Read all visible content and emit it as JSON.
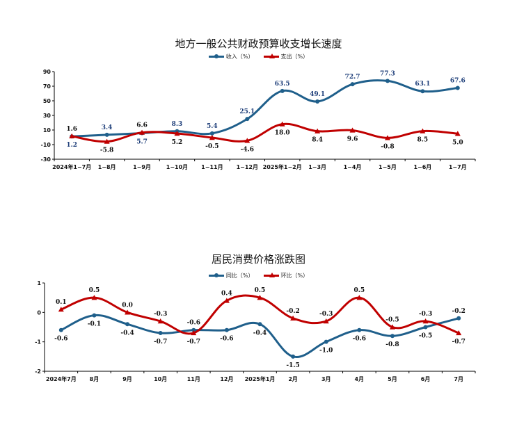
{
  "chart_data": [
    {
      "type": "line",
      "title": "地方一般公共财政预算收支增长速度",
      "categories": [
        "2024年1−7月",
        "1−8月",
        "1−9月",
        "1−10月",
        "1−11月",
        "1−12月",
        "2025年1−2月",
        "1−3月",
        "1−4月",
        "1−5月",
        "1−6月",
        "1−7月"
      ],
      "yticks": [
        90,
        70,
        50,
        30,
        10,
        -10,
        -30
      ],
      "ylim": [
        -30,
        90
      ],
      "series": [
        {
          "name": "收入（%）",
          "color": "#1f5f8b",
          "marker": "circle",
          "values": [
            1.2,
            3.4,
            5.7,
            8.3,
            5.4,
            25.1,
            63.5,
            49.1,
            72.7,
            77.3,
            63.1,
            67.6
          ],
          "labels": [
            "1.2",
            "3.4",
            "5.7",
            "8.3",
            "5.4",
            "25.1",
            "63.5",
            "49.1",
            "72.7",
            "77.3",
            "63.1",
            "67.6"
          ]
        },
        {
          "name": "支出（%）",
          "color": "#c00000",
          "marker": "triangle",
          "values": [
            1.6,
            -5.8,
            6.6,
            5.2,
            -0.5,
            -4.6,
            18.0,
            8.4,
            9.6,
            -0.8,
            8.5,
            5.0
          ],
          "labels": [
            "1.6",
            "-5.8",
            "6.6",
            "5.2",
            "-0.5",
            "-4.6",
            "18.0",
            "8.4",
            "9.6",
            "-0.8",
            "8.5",
            "5.0"
          ]
        }
      ]
    },
    {
      "type": "line",
      "title": "居民消费价格涨跌图",
      "categories": [
        "2024年7月",
        "8月",
        "9月",
        "10月",
        "11月",
        "12月",
        "2025年1月",
        "2月",
        "3月",
        "4月",
        "5月",
        "6月",
        "7月"
      ],
      "yticks": [
        1,
        0,
        -1,
        -2
      ],
      "ylim": [
        -2,
        1
      ],
      "series": [
        {
          "name": "同比（%）",
          "color": "#1f5f8b",
          "marker": "circle",
          "values": [
            -0.6,
            -0.1,
            -0.4,
            -0.7,
            -0.6,
            -0.6,
            -0.4,
            -1.5,
            -1.0,
            -0.6,
            -0.8,
            -0.5,
            -0.2
          ],
          "labels": [
            "-0.6",
            "-0.1",
            "-0.4",
            "-0.7",
            "-0.6",
            "-0.6",
            "-0.4",
            "-1.5",
            "-1.0",
            "-0.6",
            "-0.8",
            "-0.5",
            "-0.2"
          ]
        },
        {
          "name": "环比（%）",
          "color": "#c00000",
          "marker": "triangle",
          "values": [
            0.1,
            0.5,
            0.0,
            -0.3,
            -0.7,
            0.4,
            0.5,
            -0.2,
            -0.3,
            0.5,
            -0.5,
            -0.3,
            -0.7
          ],
          "labels": [
            "0.1",
            "0.5",
            "0.0",
            "-0.3",
            "-0.7",
            "0.4",
            "0.5",
            "-0.2",
            "-0.3",
            "0.5",
            "-0.5",
            "-0.3",
            "-0.7"
          ]
        }
      ]
    }
  ]
}
